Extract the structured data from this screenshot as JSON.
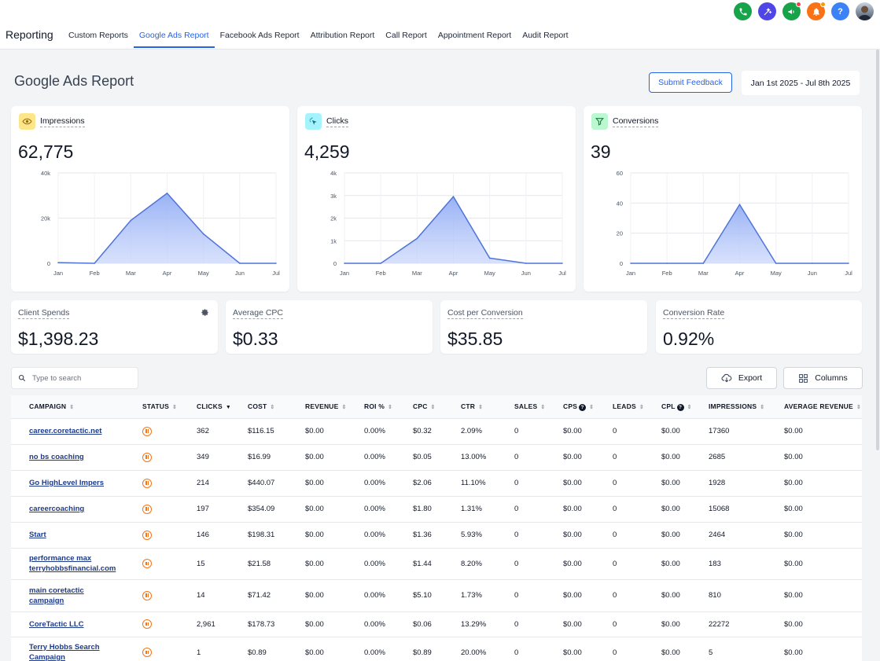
{
  "header": {
    "brand": "Reporting",
    "tabs": [
      {
        "label": "Custom Reports"
      },
      {
        "label": "Google Ads Report",
        "active": true
      },
      {
        "label": "Facebook Ads Report"
      },
      {
        "label": "Attribution Report"
      },
      {
        "label": "Call Report"
      },
      {
        "label": "Appointment Report"
      },
      {
        "label": "Audit Report"
      }
    ],
    "icons": [
      {
        "name": "phone-icon",
        "color": "#16a34a"
      },
      {
        "name": "magic-icon",
        "color": "#4f46e5"
      },
      {
        "name": "megaphone-icon",
        "color": "#16a34a"
      },
      {
        "name": "bell-icon",
        "color": "#f97316"
      },
      {
        "name": "help-icon",
        "color": "#3b82f6"
      }
    ]
  },
  "page": {
    "title": "Google Ads Report",
    "feedback_label": "Submit Feedback",
    "date_range": "Jan 1st 2025 - Jul 8th 2025"
  },
  "charts": [
    {
      "label": "Impressions",
      "value": "62,775",
      "icon": "eye-icon",
      "badge_color": "#fde68a",
      "icon_color": "#a16207",
      "chart_data": {
        "type": "area",
        "categories": [
          "Jan",
          "Feb",
          "Mar",
          "Apr",
          "May",
          "Jun",
          "Jul"
        ],
        "values": [
          300,
          0,
          19000,
          31000,
          13000,
          0,
          0
        ],
        "ylim": [
          0,
          40000
        ],
        "yticks": [
          "0",
          "20k",
          "40k"
        ],
        "ytick_values": [
          0,
          20000,
          40000
        ],
        "color": "#4f73d9"
      }
    },
    {
      "label": "Clicks",
      "value": "4,259",
      "icon": "cursor-click-icon",
      "badge_color": "#a5f3fc",
      "icon_color": "#0e7490",
      "chart_data": {
        "type": "area",
        "categories": [
          "Jan",
          "Feb",
          "Mar",
          "Apr",
          "May",
          "Jun",
          "Jul"
        ],
        "values": [
          0,
          0,
          1100,
          2950,
          230,
          0,
          0
        ],
        "ylim": [
          0,
          4000
        ],
        "yticks": [
          "0",
          "1k",
          "2k",
          "3k",
          "4k"
        ],
        "ytick_values": [
          0,
          1000,
          2000,
          3000,
          4000
        ],
        "color": "#4f73d9"
      }
    },
    {
      "label": "Conversions",
      "value": "39",
      "icon": "funnel-icon",
      "badge_color": "#bbf7d0",
      "icon_color": "#15803d",
      "chart_data": {
        "type": "area",
        "categories": [
          "Jan",
          "Feb",
          "Mar",
          "Apr",
          "May",
          "Jun",
          "Jul"
        ],
        "values": [
          0,
          0,
          0,
          39,
          0,
          0,
          0
        ],
        "ylim": [
          0,
          60
        ],
        "yticks": [
          "0",
          "20",
          "40",
          "60"
        ],
        "ytick_values": [
          0,
          20,
          40,
          60
        ],
        "color": "#4f73d9"
      }
    }
  ],
  "stats": [
    {
      "label": "Client Spends",
      "value": "$1,398.23"
    },
    {
      "label": "Average CPC",
      "value": "$0.33"
    },
    {
      "label": "Cost per Conversion",
      "value": "$35.85"
    },
    {
      "label": "Conversion Rate",
      "value": "0.92%"
    }
  ],
  "search": {
    "placeholder": "Type to search"
  },
  "toolbar": {
    "export_label": "Export",
    "columns_label": "Columns"
  },
  "table": {
    "columns": [
      "CAMPAIGN",
      "STATUS",
      "CLICKS",
      "COST",
      "REVENUE",
      "ROI %",
      "CPC",
      "CTR",
      "SALES",
      "CPS",
      "LEADS",
      "CPL",
      "IMPRESSIONS",
      "AVERAGE REVENUE"
    ],
    "rows": [
      {
        "campaign": "career.coretactic.net",
        "clicks": "362",
        "cost": "$116.15",
        "revenue": "$0.00",
        "roi": "0.00%",
        "cpc": "$0.32",
        "ctr": "2.09%",
        "sales": "0",
        "cps": "$0.00",
        "leads": "0",
        "cpl": "$0.00",
        "impressions": "17360",
        "avg_revenue": "$0.00"
      },
      {
        "campaign": "no bs coaching",
        "clicks": "349",
        "cost": "$16.99",
        "revenue": "$0.00",
        "roi": "0.00%",
        "cpc": "$0.05",
        "ctr": "13.00%",
        "sales": "0",
        "cps": "$0.00",
        "leads": "0",
        "cpl": "$0.00",
        "impressions": "2685",
        "avg_revenue": "$0.00"
      },
      {
        "campaign": "Go HighLevel Impers",
        "clicks": "214",
        "cost": "$440.07",
        "revenue": "$0.00",
        "roi": "0.00%",
        "cpc": "$2.06",
        "ctr": "11.10%",
        "sales": "0",
        "cps": "$0.00",
        "leads": "0",
        "cpl": "$0.00",
        "impressions": "1928",
        "avg_revenue": "$0.00"
      },
      {
        "campaign": "careercoaching",
        "clicks": "197",
        "cost": "$354.09",
        "revenue": "$0.00",
        "roi": "0.00%",
        "cpc": "$1.80",
        "ctr": "1.31%",
        "sales": "0",
        "cps": "$0.00",
        "leads": "0",
        "cpl": "$0.00",
        "impressions": "15068",
        "avg_revenue": "$0.00"
      },
      {
        "campaign": "Start",
        "clicks": "146",
        "cost": "$198.31",
        "revenue": "$0.00",
        "roi": "0.00%",
        "cpc": "$1.36",
        "ctr": "5.93%",
        "sales": "0",
        "cps": "$0.00",
        "leads": "0",
        "cpl": "$0.00",
        "impressions": "2464",
        "avg_revenue": "$0.00"
      },
      {
        "campaign": "performance max terryhobbsfinancial.com",
        "clicks": "15",
        "cost": "$21.58",
        "revenue": "$0.00",
        "roi": "0.00%",
        "cpc": "$1.44",
        "ctr": "8.20%",
        "sales": "0",
        "cps": "$0.00",
        "leads": "0",
        "cpl": "$0.00",
        "impressions": "183",
        "avg_revenue": "$0.00"
      },
      {
        "campaign": "main coretactic campaign",
        "clicks": "14",
        "cost": "$71.42",
        "revenue": "$0.00",
        "roi": "0.00%",
        "cpc": "$5.10",
        "ctr": "1.73%",
        "sales": "0",
        "cps": "$0.00",
        "leads": "0",
        "cpl": "$0.00",
        "impressions": "810",
        "avg_revenue": "$0.00"
      },
      {
        "campaign": "CoreTactic LLC",
        "clicks": "2,961",
        "cost": "$178.73",
        "revenue": "$0.00",
        "roi": "0.00%",
        "cpc": "$0.06",
        "ctr": "13.29%",
        "sales": "0",
        "cps": "$0.00",
        "leads": "0",
        "cpl": "$0.00",
        "impressions": "22272",
        "avg_revenue": "$0.00"
      },
      {
        "campaign": "Terry Hobbs Search Campaign",
        "clicks": "1",
        "cost": "$0.89",
        "revenue": "$0.00",
        "roi": "0.00%",
        "cpc": "$0.89",
        "ctr": "20.00%",
        "sales": "0",
        "cps": "$0.00",
        "leads": "0",
        "cpl": "$0.00",
        "impressions": "5",
        "avg_revenue": "$0.00"
      }
    ]
  }
}
